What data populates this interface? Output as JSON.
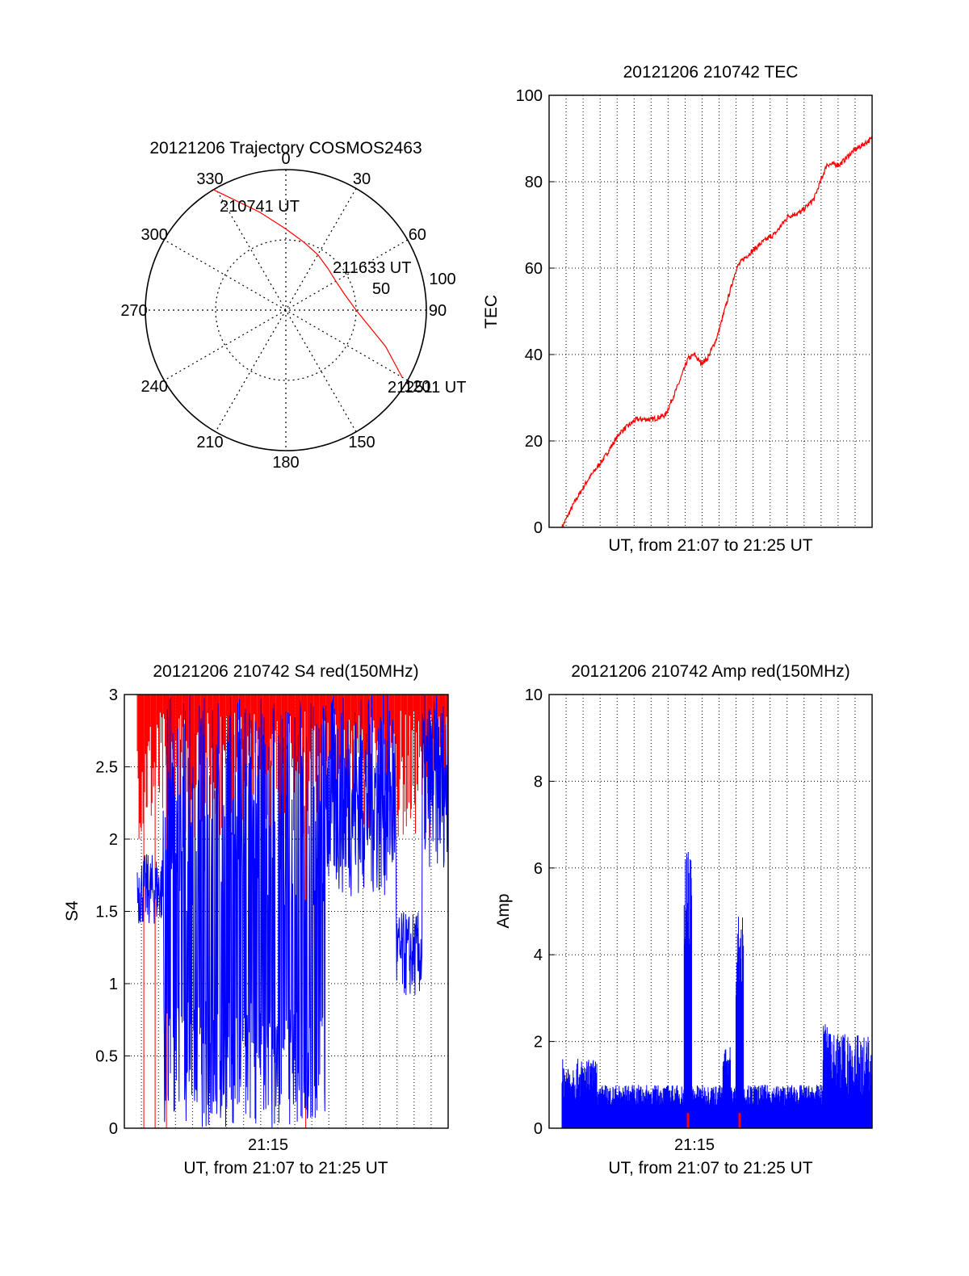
{
  "colors": {
    "red": "#ff0000",
    "blue": "#0000ff",
    "axis": "#000000",
    "grid": "#000000"
  },
  "chart_data": [
    {
      "type": "polar",
      "title": "20121206 Trajectory COSMOS2463",
      "angle_labels": [
        "0",
        "30",
        "60",
        "90",
        "120",
        "150",
        "180",
        "210",
        "240",
        "270",
        "300",
        "330"
      ],
      "radius_labels": [
        "50",
        "100"
      ],
      "series": [
        {
          "color": "#ff0000",
          "points_az_el": [
            [
              329,
              0
            ],
            [
              345,
              25
            ],
            [
              0,
              38
            ],
            [
              15,
              45
            ],
            [
              30,
              49
            ],
            [
              45,
              52
            ],
            [
              60,
              53
            ],
            [
              75,
              51
            ],
            [
              90,
              45
            ],
            [
              110,
              22
            ],
            [
              120,
              4
            ]
          ]
        }
      ],
      "annotations": [
        "210741 UT",
        "211633 UT",
        "212511 UT"
      ]
    },
    {
      "type": "line",
      "title": "20121206 210742 TEC",
      "xlabel": "UT, from 21:07 to 21:25 UT",
      "ylabel": "TEC",
      "ylim": [
        0,
        100
      ],
      "yticks": [
        "0",
        "20",
        "40",
        "60",
        "80",
        "100"
      ],
      "grid": true,
      "series": [
        {
          "color": "#ff0000",
          "x_frac": [
            0.04,
            0.08,
            0.12,
            0.17,
            0.22,
            0.27,
            0.32,
            0.36,
            0.4,
            0.43,
            0.45,
            0.47,
            0.49,
            0.52,
            0.55,
            0.58,
            0.6,
            0.63,
            0.66,
            0.7,
            0.74,
            0.78,
            0.82,
            0.86,
            0.9,
            0.94,
            1.0
          ],
          "values": [
            0,
            6,
            11,
            16,
            22,
            25,
            25,
            26,
            33,
            39,
            40,
            38,
            39,
            44,
            52,
            60,
            62,
            64,
            66,
            68,
            72,
            73,
            76,
            84,
            84,
            87,
            90
          ]
        }
      ]
    },
    {
      "type": "line",
      "title": "20121206 210742 S4 red(150MHz)",
      "xlabel": "UT, from 21:07 to 21:25 UT",
      "ylabel": "S4",
      "ylim": [
        0,
        3
      ],
      "yticks": [
        "0",
        "0.5",
        "1",
        "1.5",
        "2",
        "2.5",
        "3"
      ],
      "xticks": [
        "21:15"
      ],
      "grid": true,
      "series": [
        {
          "name": "",
          "color": "#ff0000"
        },
        {
          "name": "",
          "color": "#0000ff"
        }
      ]
    },
    {
      "type": "line",
      "title": "20121206 210742 Amp red(150MHz)",
      "xlabel": "UT, from 21:07 to 21:25 UT",
      "ylabel": "Amp",
      "ylim": [
        0,
        10
      ],
      "yticks": [
        "0",
        "2",
        "4",
        "6",
        "8",
        "10"
      ],
      "xticks": [
        "21:15"
      ],
      "grid": true,
      "series": [
        {
          "name": "",
          "color": "#0000ff",
          "peaks": [
            [
              0.43,
              6.6
            ],
            [
              0.59,
              5.0
            ],
            [
              0.55,
              1.9
            ],
            [
              0.86,
              2.5
            ]
          ]
        },
        {
          "name": "",
          "color": "#ff0000"
        }
      ]
    }
  ]
}
